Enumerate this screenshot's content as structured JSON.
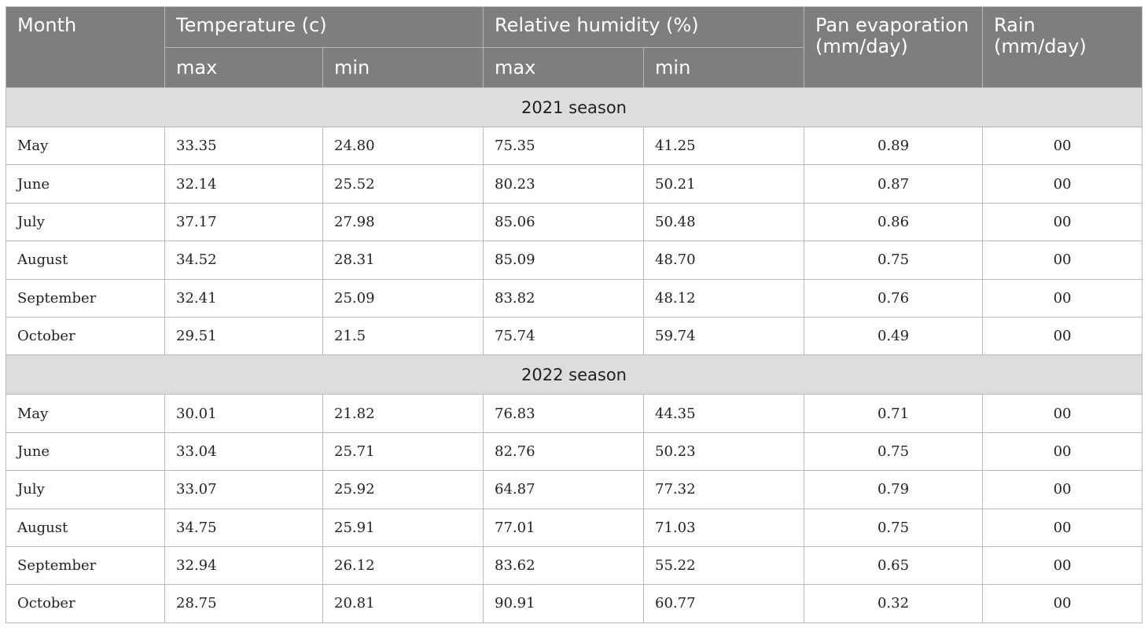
{
  "header": {
    "month": "Month",
    "temperature": "Temperature (c)",
    "humidity": "Relative humidity (%)",
    "pan": "Pan evaporation (mm/day)",
    "rain": "Rain (mm/day)",
    "temp_max": "max",
    "temp_min": "min",
    "hum_max": "max",
    "hum_min": "min"
  },
  "seasons": [
    {
      "label": "2021 season",
      "rows": [
        {
          "month": "May",
          "tmax": "33.35",
          "tmin": "24.80",
          "hmax": "75.35",
          "hmin": "41.25",
          "pan": "0.89",
          "rain": "00"
        },
        {
          "month": "June",
          "tmax": "32.14",
          "tmin": "25.52",
          "hmax": "80.23",
          "hmin": "50.21",
          "pan": "0.87",
          "rain": "00"
        },
        {
          "month": "July",
          "tmax": "37.17",
          "tmin": "27.98",
          "hmax": "85.06",
          "hmin": "50.48",
          "pan": "0.86",
          "rain": "00"
        },
        {
          "month": "August",
          "tmax": "34.52",
          "tmin": "28.31",
          "hmax": "85.09",
          "hmin": "48.70",
          "pan": "0.75",
          "rain": "00"
        },
        {
          "month": "September",
          "tmax": "32.41",
          "tmin": "25.09",
          "hmax": "83.82",
          "hmin": "48.12",
          "pan": "0.76",
          "rain": "00"
        },
        {
          "month": "October",
          "tmax": "29.51",
          "tmin": "21.5",
          "hmax": "75.74",
          "hmin": "59.74",
          "pan": "0.49",
          "rain": "00"
        }
      ]
    },
    {
      "label": "2022 season",
      "rows": [
        {
          "month": "May",
          "tmax": "30.01",
          "tmin": "21.82",
          "hmax": "76.83",
          "hmin": "44.35",
          "pan": "0.71",
          "rain": "00"
        },
        {
          "month": "June",
          "tmax": "33.04",
          "tmin": "25.71",
          "hmax": "82.76",
          "hmin": "50.23",
          "pan": "0.75",
          "rain": "00"
        },
        {
          "month": "July",
          "tmax": "33.07",
          "tmin": "25.92",
          "hmax": "64.87",
          "hmin": "77.32",
          "pan": "0.79",
          "rain": "00"
        },
        {
          "month": "August",
          "tmax": "34.75",
          "tmin": "25.91",
          "hmax": "77.01",
          "hmin": "71.03",
          "pan": "0.75",
          "rain": "00"
        },
        {
          "month": "September",
          "tmax": "32.94",
          "tmin": "26.12",
          "hmax": "83.62",
          "hmin": "55.22",
          "pan": "0.65",
          "rain": "00"
        },
        {
          "month": "October",
          "tmax": "28.75",
          "tmin": "20.81",
          "hmax": "90.91",
          "hmin": "60.77",
          "pan": "0.32",
          "rain": "00"
        }
      ]
    }
  ]
}
